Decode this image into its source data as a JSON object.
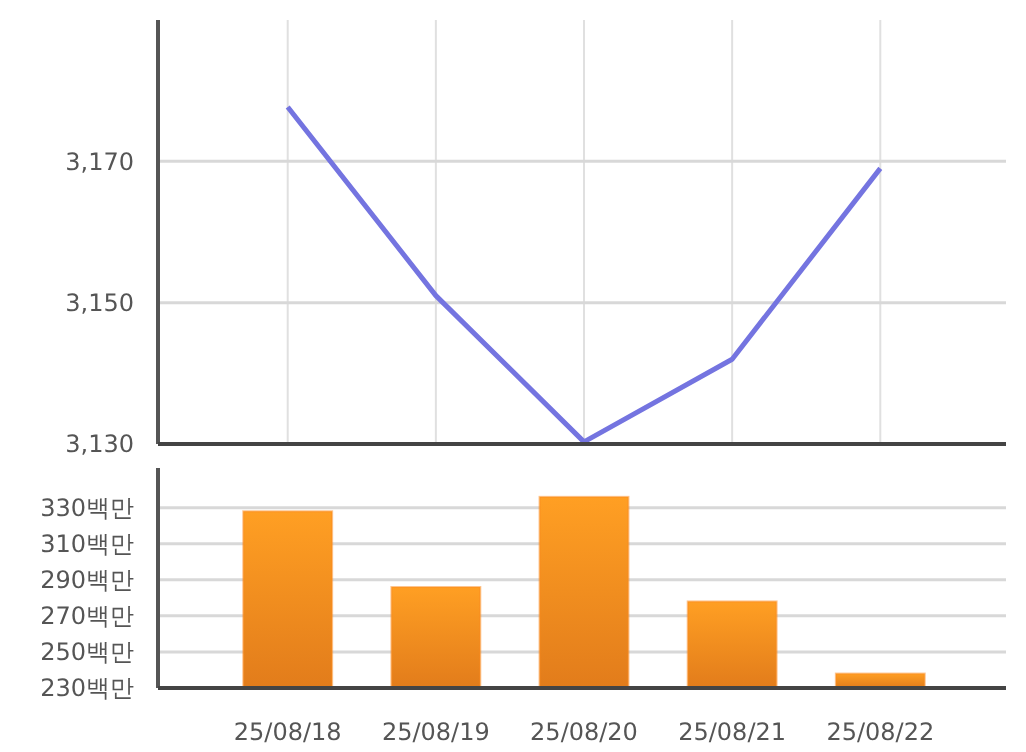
{
  "chart_data": [
    {
      "type": "line",
      "categories": [
        null,
        null,
        null,
        null,
        null
      ],
      "values": [
        3177.7,
        3151,
        3130.3,
        3142,
        3169
      ],
      "color": "#7474e0",
      "ylim": [
        3130,
        3190
      ],
      "yticks": [
        {
          "value": 3130,
          "label": "3,130"
        },
        {
          "value": 3150,
          "label": "3,150"
        },
        {
          "value": 3170,
          "label": "3,170"
        }
      ],
      "grid": true,
      "tick_labels": "y",
      "marker": "none"
    },
    {
      "type": "bar",
      "categories": [
        "25/08/18",
        "25/08/19",
        "25/08/20",
        "25/08/21",
        "25/08/22"
      ],
      "values": [
        328,
        286,
        336,
        278,
        238
      ],
      "color": "#fc8a1e",
      "ylim": [
        230,
        352
      ],
      "yticks": [
        {
          "value": 230,
          "label": "230백만"
        },
        {
          "value": 250,
          "label": "250백만"
        },
        {
          "value": 270,
          "label": "270백만"
        },
        {
          "value": 290,
          "label": "290백만"
        },
        {
          "value": 310,
          "label": "310백만"
        },
        {
          "value": 330,
          "label": "330백만"
        }
      ],
      "grid": "y"
    }
  ]
}
